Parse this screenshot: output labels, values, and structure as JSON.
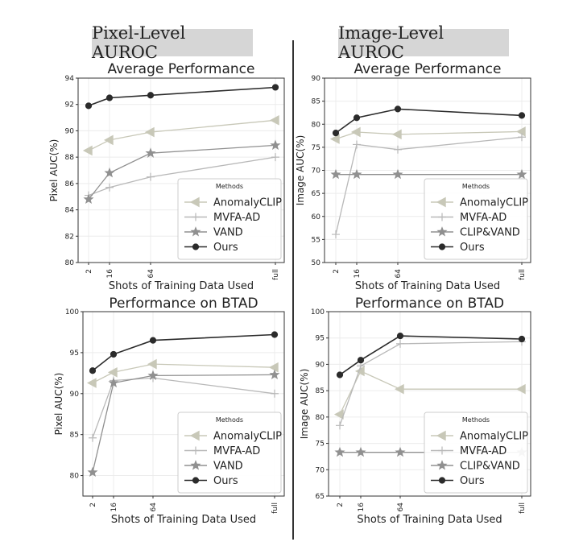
{
  "headers": {
    "left": "Pixel-Level AUROC",
    "right": "Image-Level AUROC"
  },
  "colors": {
    "AnomalyCLIP": "#c8c8b8",
    "MVFA-AD": "#b8b8b8",
    "VAND": "#909090",
    "CLIP&VAND": "#909090",
    "Ours": "#2b2b2b",
    "grid": "#ececec",
    "axis": "#333333"
  },
  "chart_data": [
    {
      "type": "line",
      "title": "Average Performance",
      "xlabel": "Shots of Training Data Used",
      "ylabel": "Pixel AUC(%)",
      "x_ticks": [
        "2",
        "16",
        "64",
        "full"
      ],
      "y_ticks": [
        "80",
        "82",
        "84",
        "86",
        "88",
        "90",
        "92",
        "94"
      ],
      "ylim": [
        80,
        94
      ],
      "grid": true,
      "legend": {
        "title": "Methods",
        "placement": "lower-right"
      },
      "series": [
        {
          "name": "AnomalyCLIP",
          "marker": "triangle-left",
          "values": [
            88.5,
            89.3,
            89.9,
            90.8
          ]
        },
        {
          "name": "MVFA-AD",
          "marker": "plus",
          "values": [
            85.1,
            85.7,
            86.5,
            88.0
          ]
        },
        {
          "name": "VAND",
          "marker": "star",
          "values": [
            84.8,
            86.8,
            88.3,
            88.9
          ]
        },
        {
          "name": "Ours",
          "marker": "circle",
          "values": [
            91.9,
            92.5,
            92.7,
            93.3
          ]
        }
      ]
    },
    {
      "type": "line",
      "title": "Average Performance",
      "xlabel": "Shots of Training Data Used",
      "ylabel": "Image AUC(%)",
      "x_ticks": [
        "2",
        "16",
        "64",
        "full"
      ],
      "y_ticks": [
        "50",
        "55",
        "60",
        "65",
        "70",
        "75",
        "80",
        "85",
        "90"
      ],
      "ylim": [
        50,
        90
      ],
      "grid": true,
      "legend": {
        "title": "Methods",
        "placement": "lower-right"
      },
      "series": [
        {
          "name": "AnomalyCLIP",
          "marker": "triangle-left",
          "values": [
            76.8,
            78.3,
            77.8,
            78.4
          ]
        },
        {
          "name": "MVFA-AD",
          "marker": "plus",
          "values": [
            56.1,
            75.6,
            74.5,
            77.2
          ]
        },
        {
          "name": "CLIP&VAND",
          "marker": "star",
          "values": [
            69.1,
            69.1,
            69.1,
            69.1
          ]
        },
        {
          "name": "Ours",
          "marker": "circle",
          "values": [
            78.1,
            81.4,
            83.3,
            81.9
          ]
        }
      ]
    },
    {
      "type": "line",
      "title": "Performance on BTAD",
      "xlabel": "Shots of Training Data Used",
      "ylabel": "Pixel AUC(%)",
      "x_ticks": [
        "2",
        "16",
        "64",
        "full"
      ],
      "y_ticks": [
        "80",
        "85",
        "90",
        "95",
        "100"
      ],
      "ylim": [
        77.5,
        100
      ],
      "grid": true,
      "legend": {
        "title": "Methods",
        "placement": "lower-right"
      },
      "series": [
        {
          "name": "AnomalyCLIP",
          "marker": "triangle-left",
          "values": [
            91.3,
            92.6,
            93.6,
            93.2
          ]
        },
        {
          "name": "MVFA-AD",
          "marker": "plus",
          "values": [
            84.6,
            91.6,
            91.9,
            90.0
          ]
        },
        {
          "name": "VAND",
          "marker": "star",
          "values": [
            80.4,
            91.3,
            92.2,
            92.3
          ]
        },
        {
          "name": "Ours",
          "marker": "circle",
          "values": [
            92.8,
            94.8,
            96.5,
            97.2
          ]
        }
      ]
    },
    {
      "type": "line",
      "title": "Performance on BTAD",
      "xlabel": "Shots of Training Data Used",
      "ylabel": "Image AUC(%)",
      "x_ticks": [
        "2",
        "16",
        "64",
        "full"
      ],
      "y_ticks": [
        "65",
        "70",
        "75",
        "80",
        "85",
        "90",
        "95",
        "100"
      ],
      "ylim": [
        65,
        100
      ],
      "grid": true,
      "legend": {
        "title": "Methods",
        "placement": "lower-right"
      },
      "series": [
        {
          "name": "AnomalyCLIP",
          "marker": "triangle-left",
          "values": [
            80.5,
            88.7,
            85.3,
            85.3
          ]
        },
        {
          "name": "MVFA-AD",
          "marker": "plus",
          "values": [
            78.4,
            89.7,
            93.9,
            94.3
          ]
        },
        {
          "name": "CLIP&VAND",
          "marker": "star",
          "values": [
            73.3,
            73.3,
            73.3,
            73.3
          ]
        },
        {
          "name": "Ours",
          "marker": "circle",
          "values": [
            88.0,
            90.8,
            95.4,
            94.8
          ]
        }
      ]
    }
  ]
}
